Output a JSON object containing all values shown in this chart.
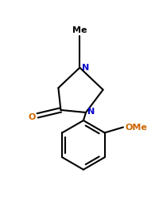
{
  "bg_color": "#ffffff",
  "bond_color": "#000000",
  "label_color_N": "#0000cc",
  "label_color_O": "#cc6600",
  "label_color_Me": "#000000",
  "linewidth": 1.5,
  "figsize": [
    2.01,
    2.53
  ],
  "dpi": 100,
  "Me_label": "Me",
  "N1_label": "N",
  "N2_label": "N",
  "O_label": "O",
  "OMe_label": "OMe",
  "xlim": [
    0,
    201
  ],
  "ylim": [
    0,
    253
  ]
}
